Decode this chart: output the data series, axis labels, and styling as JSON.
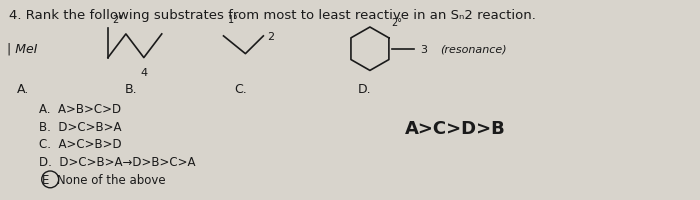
{
  "title": "4. Rank the following substrates from most to least reactive in an Sₙ2 reaction.",
  "background_color": "#d8d4cc",
  "fig_width": 7.0,
  "fig_height": 2.01,
  "substrate_label_A": "A.",
  "substrate_label_B": "B.",
  "substrate_label_C": "C.",
  "substrate_label_D": "D.",
  "label_MeI": "| MeI",
  "label_2deg_A": "2°",
  "label_4": "4",
  "label_1deg": "1°",
  "label_2": "2",
  "label_2deg_D": "2°",
  "label_3": "3",
  "label_resonance": "(resonance)",
  "choices": [
    "A.  A>B>C>D",
    "B.  D>C>B>A",
    "C.  A>C>B>D",
    "D.  D>C>B>A→D>B>C>A"
  ],
  "choice_E": "E  None of the above",
  "answer": "A>C>D>B",
  "font_size_title": 9.5,
  "font_size_text": 9,
  "font_size_answer": 13,
  "text_color": "#1a1a1a"
}
